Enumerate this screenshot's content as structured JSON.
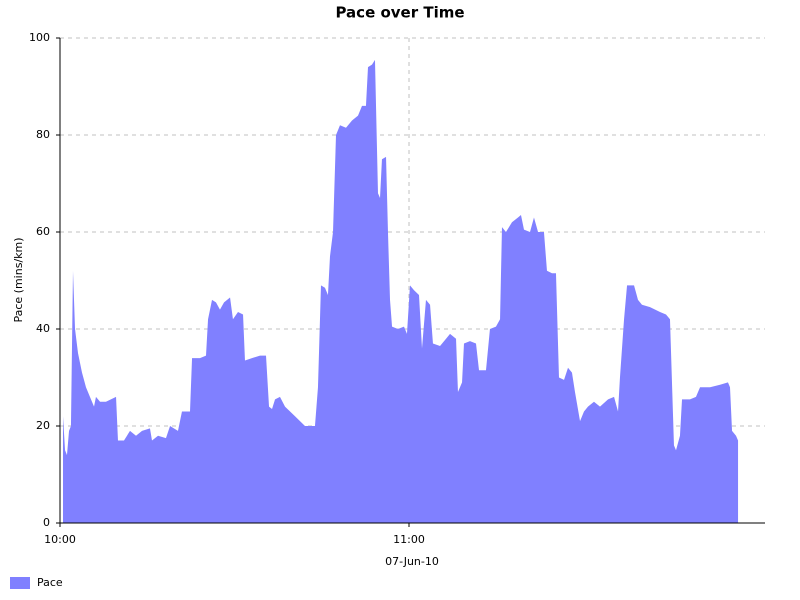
{
  "chart_data": {
    "type": "area",
    "title": "Pace over Time",
    "y_label": "Pace (mins/km)",
    "x_label": "07-Jun-10",
    "series": [
      {
        "name": "Pace",
        "color": "#8080ff",
        "x": [
          "10:00:31",
          "10:00:52",
          "10:01:12",
          "10:01:33",
          "10:01:53",
          "10:02:14",
          "10:02:35",
          "10:03:06",
          "10:03:47",
          "10:04:28",
          "10:05:09",
          "10:05:51",
          "10:06:11",
          "10:06:53",
          "10:07:54",
          "10:09:38",
          "10:09:58",
          "10:11:00",
          "10:12:02",
          "10:13:04",
          "10:14:06",
          "10:15:28",
          "10:15:49",
          "10:16:51",
          "10:18:13",
          "10:18:55",
          "10:20:17",
          "10:20:58",
          "10:22:21",
          "10:22:42",
          "10:24:04",
          "10:25:06",
          "10:25:27",
          "10:26:08",
          "10:26:49",
          "10:27:30",
          "10:28:12",
          "10:29:14",
          "10:29:44",
          "10:30:36",
          "10:31:28",
          "10:31:48",
          "10:33:00",
          "10:34:23",
          "10:35:25",
          "10:35:56",
          "10:36:27",
          "10:36:58",
          "10:37:49",
          "10:38:41",
          "10:40:24",
          "10:42:07",
          "10:43:50",
          "10:44:21",
          "10:44:52",
          "10:45:33",
          "10:46:04",
          "10:46:25",
          "10:46:56",
          "10:47:27",
          "10:48:08",
          "10:49:10",
          "10:50:12",
          "10:51:14",
          "10:51:55",
          "10:52:36",
          "10:52:57",
          "10:53:38",
          "10:54:09",
          "10:54:40",
          "10:55:01",
          "10:55:21",
          "10:56:03",
          "10:56:23",
          "10:56:44",
          "10:57:05",
          "10:58:06",
          "10:59:08",
          "10:59:39",
          "11:00:10",
          "11:00:52",
          "11:01:43",
          "11:02:14",
          "11:02:55",
          "11:03:37",
          "11:04:07",
          "11:05:20",
          "11:06:22",
          "11:07:03",
          "11:08:05",
          "11:08:25",
          "11:09:07",
          "11:09:27",
          "11:10:29",
          "11:11:31",
          "11:12:02",
          "11:13:14",
          "11:13:55",
          "11:14:57",
          "11:15:39",
          "11:15:59",
          "11:16:40",
          "11:17:42",
          "11:18:44",
          "11:19:15",
          "11:19:46",
          "11:20:48",
          "11:21:29",
          "11:22:11",
          "11:23:12",
          "11:23:43",
          "11:24:35",
          "11:25:16",
          "11:25:47",
          "11:26:39",
          "11:27:20",
          "11:28:01",
          "11:28:32",
          "11:29:24",
          "11:30:05",
          "11:30:46",
          "11:31:48",
          "11:32:50",
          "11:34:13",
          "11:35:15",
          "11:35:56",
          "11:36:16",
          "11:36:58",
          "11:37:29",
          "11:38:41",
          "11:39:22",
          "11:40:03",
          "11:41:26",
          "11:43:09",
          "11:44:11",
          "11:44:52",
          "11:45:33",
          "11:45:54",
          "11:46:35",
          "11:46:56",
          "11:48:18",
          "11:49:20",
          "11:50:02",
          "11:51:45",
          "11:53:28",
          "11:54:50",
          "11:55:11",
          "11:55:32",
          "11:56:13",
          "11:56:34"
        ],
        "values": [
          22,
          15,
          14,
          19,
          20,
          52,
          40,
          35,
          31,
          28,
          26,
          24,
          26,
          25,
          25,
          26,
          17,
          17,
          19,
          18,
          19,
          19.5,
          17,
          18,
          17.5,
          20,
          19,
          23,
          23,
          34,
          34,
          34.5,
          42,
          46,
          45.5,
          44,
          45.5,
          46.5,
          42,
          43.5,
          43,
          33.5,
          34,
          34.5,
          34.5,
          24,
          23.5,
          25.5,
          26,
          24,
          22,
          20,
          20,
          28,
          49,
          48.5,
          47,
          55,
          60,
          80,
          82,
          81.5,
          83,
          84,
          86,
          86,
          94,
          94.5,
          95.5,
          68,
          67,
          75,
          75.5,
          60,
          46,
          40.5,
          40,
          40.5,
          39,
          49,
          48,
          47,
          36,
          46,
          45,
          37,
          36.5,
          38,
          39,
          38,
          27,
          29,
          37,
          37.5,
          37,
          31.5,
          31.5,
          40,
          40.5,
          42,
          61,
          60,
          62,
          63,
          63.5,
          60.5,
          60,
          63,
          60,
          60,
          52,
          51.5,
          51.5,
          30,
          29.5,
          32,
          31,
          27,
          21,
          23,
          24,
          25,
          24,
          25.5,
          26,
          23,
          30,
          42,
          49,
          49,
          46,
          45,
          44.5,
          43.5,
          43,
          42,
          16,
          15,
          18,
          25.5,
          25.5,
          26,
          28,
          28,
          28.5,
          29,
          28,
          19,
          18,
          17
        ]
      }
    ],
    "xlim": [
      "10:00:00",
      "12:01:12"
    ],
    "xticks": [
      "10:00",
      "11:00"
    ],
    "ylim": [
      0,
      100
    ],
    "yticks": [
      0,
      20,
      40,
      60,
      80,
      100
    ],
    "grid": true,
    "legend": "bottom-left"
  }
}
